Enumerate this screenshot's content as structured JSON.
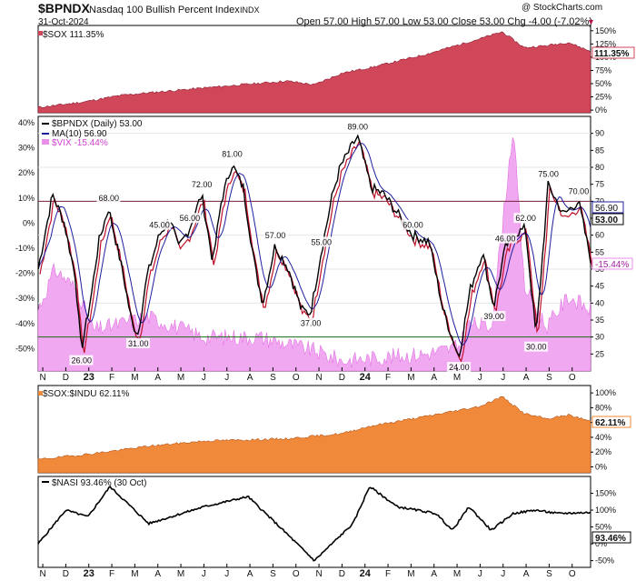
{
  "header": {
    "symbol": "$BPNDX",
    "name": "Nasdaq 100 Bullish Percent Index",
    "exchange": "INDX",
    "date": "31-Oct-2024",
    "ohlc": "Open 57.00   High 57.00   Low 53.00   Close 53.00   Chg -4.00 (-7.02%)",
    "chg_arrow": "▼",
    "watermark": "@ StockCharts.com"
  },
  "colors": {
    "sox": "#d0475a",
    "bpndx": "#000000",
    "ma": "#1f1f9e",
    "vix": "#e88fe8",
    "ratio": "#f08a3a",
    "nasi": "#000000",
    "hline_top": "#7a1f3a",
    "hline_bottom": "#1a6b1a"
  },
  "panel1": {
    "legend": "$SOX 111.35%",
    "last_label": "111.35%",
    "right_ticks": [
      "150%",
      "125%",
      "100%",
      "75%",
      "50%",
      "25%",
      "0%"
    ]
  },
  "panel2": {
    "legend": [
      "$BPNDX (Daily) 53.00",
      "MA(10) 56.90",
      "$VIX -15.44%"
    ],
    "left_ticks": [
      "40%",
      "30%",
      "20%",
      "10%",
      "0%",
      "-10%",
      "-20%",
      "-30%",
      "-40%",
      "-50%"
    ],
    "right_ticks": [
      "90",
      "85",
      "80",
      "75",
      "70",
      "65",
      "60",
      "55",
      "50",
      "45",
      "40",
      "35",
      "30",
      "25"
    ],
    "labels_right": {
      "ma": "56.90",
      "close": "53.00",
      "vix": "-15.44%"
    },
    "ref_lines": [
      "70",
      "30"
    ]
  },
  "panel3": {
    "legend": "$SOX:$INDU 62.11%",
    "last_label": "62.11%",
    "right_ticks": [
      "100%",
      "80%",
      "60%",
      "40%",
      "20%",
      "0%"
    ]
  },
  "panel4": {
    "legend": "$NASI 93.46% (30 Oct)",
    "last_label": "93.46%",
    "right_ticks": [
      "150%",
      "100%",
      "50%",
      "0%",
      "-50%"
    ]
  },
  "x_axis": {
    "labels": [
      "N",
      "D",
      "23",
      "F",
      "M",
      "A",
      "M",
      "J",
      "J",
      "A",
      "S",
      "O",
      "N",
      "D",
      "24",
      "F",
      "M",
      "A",
      "M",
      "J",
      "J",
      "A",
      "S",
      "O"
    ]
  },
  "chart_data": {
    "type": "line",
    "x_range": [
      "2022-11-01",
      "2024-10-31"
    ],
    "bpndx": {
      "name": "$BPNDX (Daily)",
      "close": 53.0,
      "ylim": [
        20,
        95
      ],
      "x": [
        "2022-11-01",
        "2022-11-20",
        "2022-12-05",
        "2022-12-20",
        "2022-12-28",
        "2023-01-10",
        "2023-01-20",
        "2023-02-02",
        "2023-02-20",
        "2023-03-05",
        "2023-03-13",
        "2023-03-25",
        "2023-04-10",
        "2023-04-25",
        "2023-05-05",
        "2023-05-20",
        "2023-06-05",
        "2023-06-20",
        "2023-07-01",
        "2023-07-15",
        "2023-07-30",
        "2023-08-15",
        "2023-08-25",
        "2023-09-10",
        "2023-09-28",
        "2023-10-15",
        "2023-10-27",
        "2023-11-10",
        "2023-11-25",
        "2023-12-05",
        "2023-12-20",
        "2023-12-28",
        "2024-01-15",
        "2024-02-01",
        "2024-02-20",
        "2024-03-10",
        "2024-04-01",
        "2024-04-19",
        "2024-05-10",
        "2024-05-25",
        "2024-06-10",
        "2024-06-25",
        "2024-07-10",
        "2024-07-20",
        "2024-08-06",
        "2024-08-20",
        "2024-09-05",
        "2024-09-25",
        "2024-10-15",
        "2024-10-31"
      ],
      "y": [
        50,
        72,
        64,
        48,
        26,
        42,
        58,
        68,
        50,
        34,
        31,
        48,
        60,
        65,
        56,
        62,
        72,
        52,
        70,
        81,
        74,
        50,
        40,
        57,
        50,
        38,
        37,
        55,
        72,
        80,
        86,
        89,
        74,
        72,
        66,
        60,
        58,
        38,
        24,
        44,
        55,
        39,
        56,
        60,
        62,
        30,
        75,
        66,
        70,
        53
      ]
    },
    "annotations": [
      {
        "label": "26.00"
      },
      {
        "label": "31.00"
      },
      {
        "label": "68.00"
      },
      {
        "label": "45.00"
      },
      {
        "label": "72.00"
      },
      {
        "label": "56.00"
      },
      {
        "label": "81.00"
      },
      {
        "label": "57.00"
      },
      {
        "label": "37.00"
      },
      {
        "label": "55.00"
      },
      {
        "label": "89.00"
      },
      {
        "label": "60.00"
      },
      {
        "label": "24.00"
      },
      {
        "label": "39.00"
      },
      {
        "label": "62.00"
      },
      {
        "label": "30.00"
      },
      {
        "label": "75.00"
      },
      {
        "label": "70.00"
      },
      {
        "label": "46.00"
      }
    ]
  }
}
